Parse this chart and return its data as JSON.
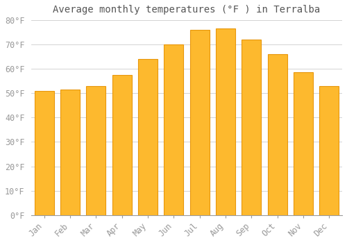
{
  "title": "Average monthly temperatures (°F ) in Terralba",
  "months": [
    "Jan",
    "Feb",
    "Mar",
    "Apr",
    "May",
    "Jun",
    "Jul",
    "Aug",
    "Sep",
    "Oct",
    "Nov",
    "Dec"
  ],
  "values": [
    51.0,
    51.5,
    53.0,
    57.5,
    64.0,
    70.0,
    76.0,
    76.5,
    72.0,
    66.0,
    58.5,
    53.0
  ],
  "bar_color": "#FDB92E",
  "bar_edge_color": "#E8960A",
  "background_color": "#FFFFFF",
  "grid_color": "#CCCCCC",
  "text_color": "#999999",
  "title_color": "#555555",
  "ylim": [
    0,
    80
  ],
  "yticks": [
    0,
    10,
    20,
    30,
    40,
    50,
    60,
    70,
    80
  ],
  "title_fontsize": 10,
  "tick_fontsize": 8.5
}
